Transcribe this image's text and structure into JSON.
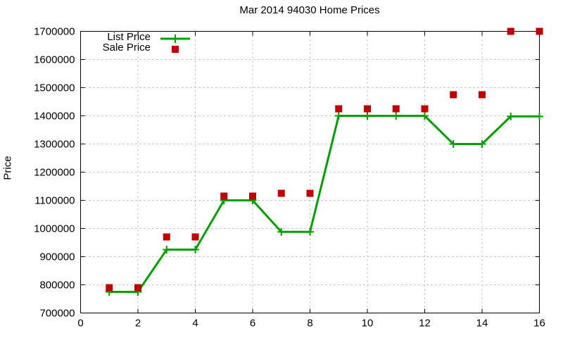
{
  "chart_data": {
    "type": "line",
    "title": "Mar 2014 94030 Home Prices",
    "xlabel": "",
    "ylabel": "Price",
    "xlim": [
      0,
      16
    ],
    "ylim": [
      700000,
      1700000
    ],
    "x_ticks": [
      0,
      2,
      4,
      6,
      8,
      10,
      12,
      14,
      16
    ],
    "y_ticks": [
      700000,
      800000,
      900000,
      1000000,
      1100000,
      1200000,
      1300000,
      1400000,
      1500000,
      1600000,
      1700000
    ],
    "grid": true,
    "legend_position": "top-left-inside",
    "background_color": "#ffffff",
    "grid_color": "#b0b0b0",
    "axis_color": "#000000",
    "x": [
      1,
      2,
      3,
      4,
      5,
      6,
      7,
      8,
      9,
      10,
      11,
      12,
      13,
      14,
      15,
      16
    ],
    "series": [
      {
        "name": "List Price",
        "type": "line-with-plus-markers",
        "color": "#00a000",
        "values": [
          775000,
          775000,
          925000,
          925000,
          1100000,
          1100000,
          988000,
          988000,
          1400000,
          1400000,
          1400000,
          1400000,
          1300000,
          1300000,
          1398000,
          1398000
        ]
      },
      {
        "name": "Sale Price",
        "type": "scatter-squares",
        "color": "#c00000",
        "values": [
          790000,
          790000,
          970000,
          970000,
          1115000,
          1115000,
          1125000,
          1125000,
          1425000,
          1425000,
          1425000,
          1425000,
          1475000,
          1475000,
          1700000,
          1700000
        ]
      }
    ]
  }
}
